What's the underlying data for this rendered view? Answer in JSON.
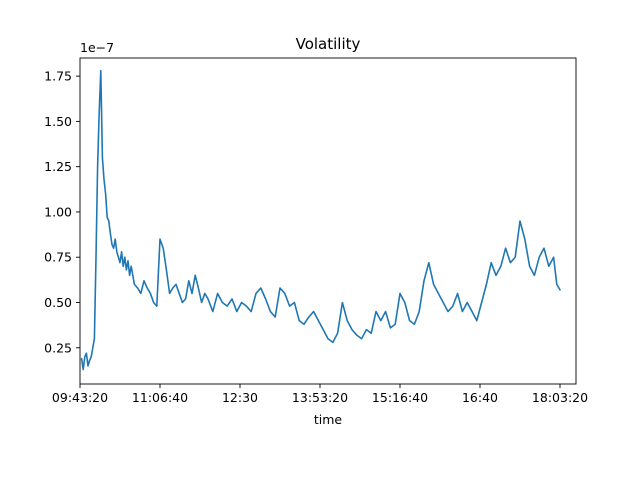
{
  "chart_data": {
    "type": "line",
    "title": "Volatility",
    "xlabel": "time",
    "ylabel": "",
    "y_offset_label": "1e−7",
    "y_scale": 1e-07,
    "xlim": [
      35000,
      66000
    ],
    "ylim": [
      0.05,
      1.85
    ],
    "grid": false,
    "legend": "none",
    "line_color": "#1f77b4",
    "x_ticks": [
      {
        "value": 35000,
        "label": "09:43:20"
      },
      {
        "value": 40000,
        "label": "11:06:40"
      },
      {
        "value": 45000,
        "label": "12:30"
      },
      {
        "value": 50000,
        "label": "13:53:20"
      },
      {
        "value": 55000,
        "label": "15:16:40"
      },
      {
        "value": 60000,
        "label": "16:40"
      },
      {
        "value": 65000,
        "label": "18:03:20"
      }
    ],
    "y_ticks": [
      {
        "value": 0.25,
        "label": "0.25"
      },
      {
        "value": 0.5,
        "label": "0.50"
      },
      {
        "value": 0.75,
        "label": "0.75"
      },
      {
        "value": 1.0,
        "label": "1.00"
      },
      {
        "value": 1.25,
        "label": "1.25"
      },
      {
        "value": 1.5,
        "label": "1.50"
      },
      {
        "value": 1.75,
        "label": "1.75"
      }
    ],
    "series": [
      {
        "x": [
          35100,
          35200,
          35300,
          35400,
          35500,
          35600,
          35700,
          35800,
          35900,
          36000,
          36100,
          36200,
          36300,
          36400,
          36500,
          36600,
          36700,
          36800,
          36900,
          37000,
          37100,
          37200,
          37300,
          37400,
          37500,
          37600,
          37700,
          37800,
          37900,
          38000,
          38100,
          38200,
          38400,
          38600,
          38800,
          39000,
          39200,
          39400,
          39600,
          39800,
          40000,
          40200,
          40400,
          40600,
          40800,
          41000,
          41200,
          41400,
          41600,
          41800,
          42000,
          42200,
          42400,
          42600,
          42800,
          43000,
          43300,
          43600,
          43900,
          44200,
          44500,
          44800,
          45100,
          45400,
          45700,
          46000,
          46300,
          46600,
          46900,
          47200,
          47500,
          47800,
          48100,
          48400,
          48700,
          49000,
          49300,
          49600,
          49900,
          50200,
          50500,
          50800,
          51100,
          51400,
          51700,
          52000,
          52300,
          52600,
          52900,
          53200,
          53500,
          53800,
          54100,
          54400,
          54700,
          55000,
          55300,
          55600,
          55900,
          56200,
          56500,
          56800,
          57100,
          57400,
          57700,
          58000,
          58300,
          58600,
          58900,
          59200,
          59500,
          59800,
          60100,
          60400,
          60700,
          61000,
          61300,
          61600,
          61900,
          62200,
          62500,
          62800,
          63100,
          63400,
          63700,
          64000,
          64300,
          64600,
          64800,
          65000
        ],
        "y": [
          0.19,
          0.13,
          0.2,
          0.22,
          0.15,
          0.18,
          0.2,
          0.25,
          0.3,
          0.75,
          1.25,
          1.55,
          1.78,
          1.3,
          1.18,
          1.1,
          0.97,
          0.95,
          0.88,
          0.82,
          0.8,
          0.85,
          0.78,
          0.75,
          0.72,
          0.78,
          0.7,
          0.75,
          0.68,
          0.73,
          0.65,
          0.7,
          0.6,
          0.58,
          0.55,
          0.62,
          0.58,
          0.55,
          0.5,
          0.48,
          0.85,
          0.8,
          0.68,
          0.55,
          0.58,
          0.6,
          0.55,
          0.5,
          0.52,
          0.62,
          0.55,
          0.65,
          0.58,
          0.5,
          0.55,
          0.52,
          0.45,
          0.55,
          0.5,
          0.48,
          0.52,
          0.45,
          0.5,
          0.48,
          0.45,
          0.55,
          0.58,
          0.52,
          0.45,
          0.42,
          0.58,
          0.55,
          0.48,
          0.5,
          0.4,
          0.38,
          0.42,
          0.45,
          0.4,
          0.35,
          0.3,
          0.28,
          0.33,
          0.5,
          0.4,
          0.35,
          0.32,
          0.3,
          0.35,
          0.33,
          0.45,
          0.4,
          0.45,
          0.36,
          0.38,
          0.55,
          0.5,
          0.4,
          0.38,
          0.45,
          0.62,
          0.72,
          0.6,
          0.55,
          0.5,
          0.45,
          0.48,
          0.55,
          0.45,
          0.5,
          0.45,
          0.4,
          0.5,
          0.6,
          0.72,
          0.65,
          0.7,
          0.8,
          0.72,
          0.75,
          0.95,
          0.85,
          0.7,
          0.65,
          0.75,
          0.8,
          0.7,
          0.75,
          0.6,
          0.57
        ]
      }
    ]
  }
}
